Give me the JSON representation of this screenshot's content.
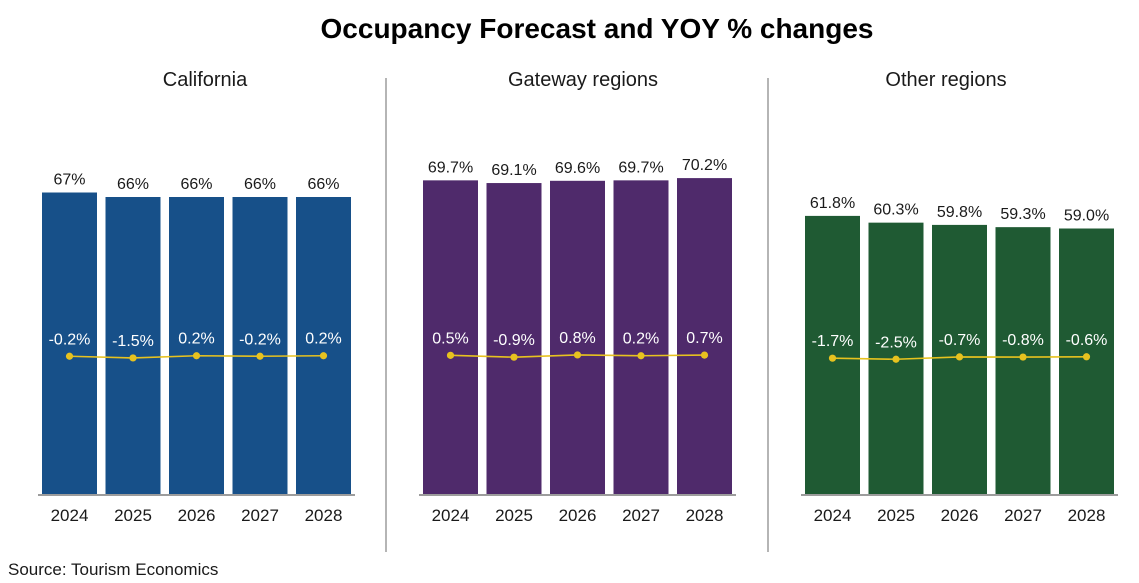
{
  "title": "Occupancy Forecast and YOY % changes",
  "source": "Source: Tourism Economics",
  "colors": {
    "line": "#e7c21f",
    "divider": "#6b6b6b",
    "axis": "#3a3a3a"
  },
  "chart_data": [
    {
      "type": "bar",
      "title": "California",
      "color": "#175089",
      "categories": [
        "2024",
        "2025",
        "2026",
        "2027",
        "2028"
      ],
      "values": [
        67,
        66,
        66,
        66,
        66
      ],
      "value_labels": [
        "67%",
        "66%",
        "66%",
        "66%",
        "66%"
      ],
      "yoy": [
        -0.2,
        -1.5,
        0.2,
        -0.2,
        0.2
      ],
      "yoy_labels": [
        "-0.2%",
        "-1.5%",
        "0.2%",
        "-0.2%",
        "0.2%"
      ]
    },
    {
      "type": "bar",
      "title": "Gateway regions",
      "color": "#4f2a6b",
      "categories": [
        "2024",
        "2025",
        "2026",
        "2027",
        "2028"
      ],
      "values": [
        69.7,
        69.1,
        69.6,
        69.7,
        70.2
      ],
      "value_labels": [
        "69.7%",
        "69.1%",
        "69.6%",
        "69.7%",
        "70.2%"
      ],
      "yoy": [
        0.5,
        -0.9,
        0.8,
        0.2,
        0.7
      ],
      "yoy_labels": [
        "0.5%",
        "-0.9%",
        "0.8%",
        "0.2%",
        "0.7%"
      ]
    },
    {
      "type": "bar",
      "title": "Other regions",
      "color": "#1f5a33",
      "categories": [
        "2024",
        "2025",
        "2026",
        "2027",
        "2028"
      ],
      "values": [
        61.8,
        60.3,
        59.8,
        59.3,
        59.0
      ],
      "value_labels": [
        "61.8%",
        "60.3%",
        "59.8%",
        "59.3%",
        "59.0%"
      ],
      "yoy": [
        -1.7,
        -2.5,
        -0.7,
        -0.8,
        -0.6
      ],
      "yoy_labels": [
        "-1.7%",
        "-2.5%",
        "-0.7%",
        "-0.8%",
        "-0.6%"
      ]
    }
  ]
}
